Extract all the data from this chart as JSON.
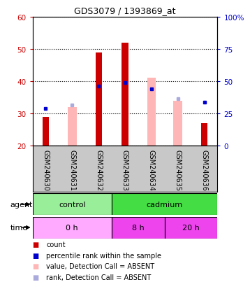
{
  "title": "GDS3079 / 1393869_at",
  "samples": [
    "GSM240630",
    "GSM240631",
    "GSM240632",
    "GSM240633",
    "GSM240634",
    "GSM240635",
    "GSM240636"
  ],
  "red_bars": [
    29,
    0,
    49,
    52,
    0,
    0,
    27
  ],
  "pink_bars": [
    0,
    32,
    0,
    0,
    41,
    34,
    0
  ],
  "blue_dots": [
    31.5,
    0,
    38.5,
    39.5,
    37.5,
    0,
    33.5
  ],
  "light_blue_dots": [
    0,
    32.5,
    0,
    0,
    0,
    34.5,
    0
  ],
  "ylim_left": [
    20,
    60
  ],
  "ylim_right": [
    0,
    100
  ],
  "yticks_left": [
    20,
    30,
    40,
    50,
    60
  ],
  "yticks_right": [
    0,
    25,
    50,
    75,
    100
  ],
  "bar_width": 0.3,
  "red_color": "#CC0000",
  "pink_color": "#FFB6B6",
  "blue_dot_color": "#0000CC",
  "light_blue_color": "#AAAADD",
  "background_color": "#C8C8C8",
  "plot_bg": "#FFFFFF",
  "ylabel_left_color": "#CC0000",
  "ylabel_right_color": "#0000CC",
  "control_color": "#99EE99",
  "cadmium_color": "#44DD44",
  "time0_color": "#FFAAFF",
  "time8_color": "#EE44EE",
  "time20_color": "#EE44EE",
  "legend_items": [
    {
      "color": "#CC0000",
      "marker": "s",
      "label": "count"
    },
    {
      "color": "#0000CC",
      "marker": "s",
      "label": "percentile rank within the sample"
    },
    {
      "color": "#FFB6B6",
      "marker": "s",
      "label": "value, Detection Call = ABSENT"
    },
    {
      "color": "#AAAADD",
      "marker": "s",
      "label": "rank, Detection Call = ABSENT"
    }
  ]
}
